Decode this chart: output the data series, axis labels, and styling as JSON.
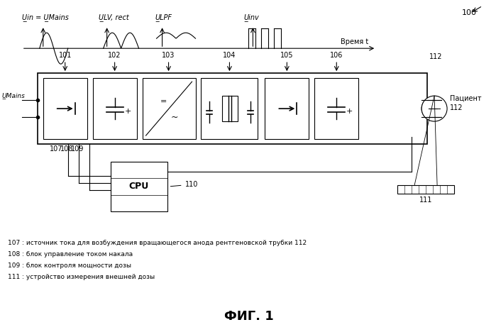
{
  "title": "ФИГ. 1",
  "fig_num": "100",
  "labels": {
    "u_in": "U̲in = U̲Mains",
    "u_lv_rect": "U̲LV, rect",
    "u_lpf": "U̲LPF",
    "u_inv": "U̲inv",
    "time_label": "Время t",
    "u_mains": "U̲Mains",
    "cpu": "CPU",
    "cpu_label": "110",
    "patient": "Пациент",
    "node_101": "101",
    "node_102": "102",
    "node_103": "103",
    "node_104": "104",
    "node_105": "105",
    "node_106": "106",
    "node_107": "107",
    "node_108": "108",
    "node_109": "109",
    "node_111": "111",
    "node_112": "112",
    "legend_107": "107 : источник тока для возбуждения вращающегося анода рентгеновской трубки 112",
    "legend_108": "108 : блок управление током накала",
    "legend_109": "109 : блок контроля мощности дозы",
    "legend_111": "111 : устройство измерения внешней дозы"
  },
  "bg_color": "#ffffff",
  "line_color": "#000000"
}
